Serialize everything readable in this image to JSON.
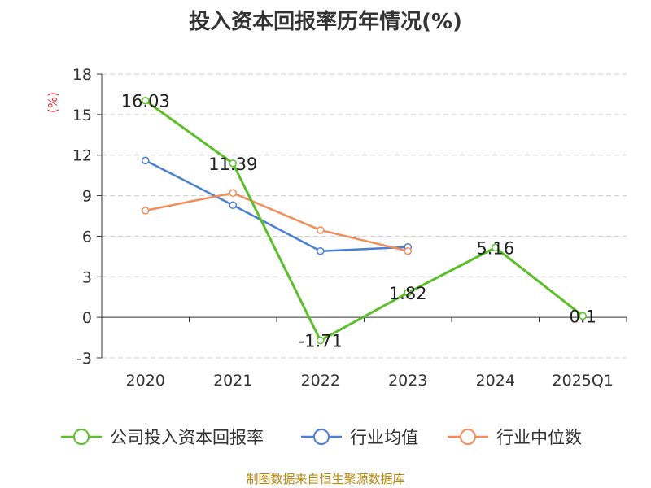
{
  "chart_data": {
    "type": "line",
    "title": "投入资本回报率历年情况(%)",
    "ylabel": "(%)",
    "categories": [
      "2020",
      "2021",
      "2022",
      "2023",
      "2024",
      "2025Q1"
    ],
    "ylim": [
      -3,
      18
    ],
    "yticks": [
      -3,
      0,
      3,
      6,
      9,
      12,
      15,
      18
    ],
    "grid": true,
    "legend_position": "bottom",
    "series": [
      {
        "name": "公司投入资本回报率",
        "color": "#5cbf2a",
        "values": [
          16.03,
          11.39,
          -1.71,
          1.82,
          5.16,
          0.1
        ],
        "labels": [
          "16.03",
          "11.39",
          "-1.71",
          "1.82",
          "5.16",
          "0.1"
        ]
      },
      {
        "name": "行业均值",
        "color": "#4a7fd6",
        "values": [
          11.6,
          8.3,
          4.9,
          5.2,
          null,
          null
        ]
      },
      {
        "name": "行业中位数",
        "color": "#f28c5a",
        "values": [
          7.9,
          9.2,
          6.45,
          4.9,
          null,
          null
        ]
      }
    ]
  },
  "source": "制图数据来自恒生聚源数据库"
}
